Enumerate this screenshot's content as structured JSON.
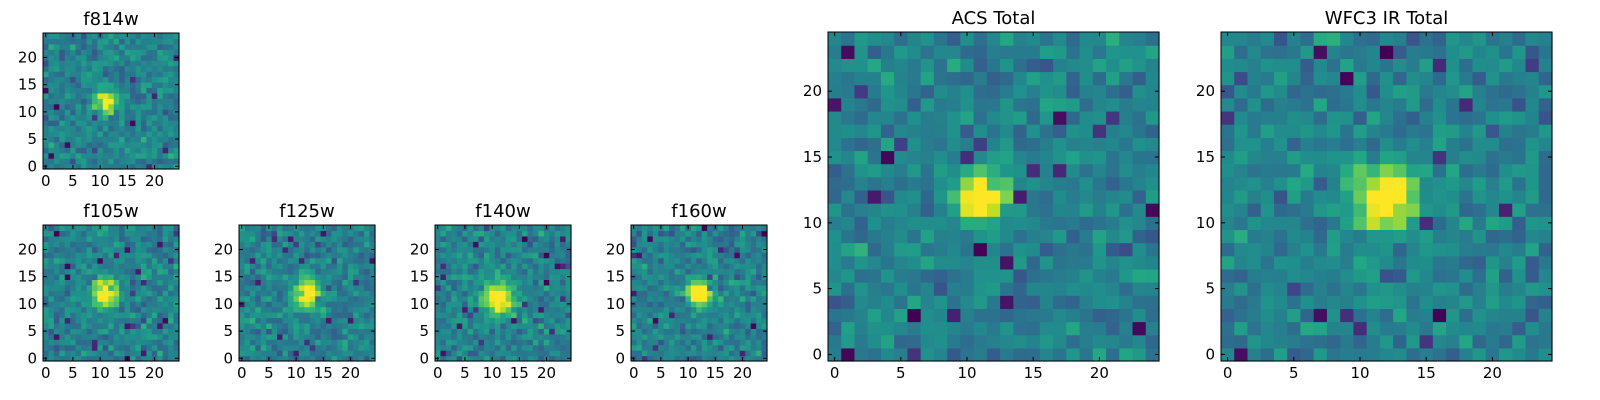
{
  "figure_description_colormap": "viridis",
  "colors": {
    "low": "#440154",
    "mid": "#21918c",
    "high": "#fde725",
    "frame": "#000000"
  },
  "chart_data": [
    {
      "type": "heatmap",
      "title": "f814w",
      "grid": 25,
      "xlim": [
        0,
        24
      ],
      "ylim": [
        0,
        24
      ],
      "xticks": [
        0,
        5,
        10,
        15,
        20
      ],
      "yticks": [
        0,
        5,
        10,
        15,
        20
      ],
      "source_peak": [
        11,
        12
      ],
      "source_width": 1.3,
      "noise_seed": 11
    },
    {
      "type": "heatmap",
      "title": "f105w",
      "grid": 25,
      "xlim": [
        0,
        24
      ],
      "ylim": [
        0,
        24
      ],
      "xticks": [
        0,
        5,
        10,
        15,
        20
      ],
      "yticks": [
        0,
        5,
        10,
        15,
        20
      ],
      "source_peak": [
        11,
        12
      ],
      "source_width": 1.7,
      "noise_seed": 23
    },
    {
      "type": "heatmap",
      "title": "f125w",
      "grid": 25,
      "xlim": [
        0,
        24
      ],
      "ylim": [
        0,
        24
      ],
      "xticks": [
        0,
        5,
        10,
        15,
        20
      ],
      "yticks": [
        0,
        5,
        10,
        15,
        20
      ],
      "source_peak": [
        12,
        12
      ],
      "source_width": 1.7,
      "noise_seed": 37
    },
    {
      "type": "heatmap",
      "title": "f140w",
      "grid": 25,
      "xlim": [
        0,
        24
      ],
      "ylim": [
        0,
        24
      ],
      "xticks": [
        0,
        5,
        10,
        15,
        20
      ],
      "yticks": [
        0,
        5,
        10,
        15,
        20
      ],
      "source_peak": [
        11,
        11
      ],
      "source_width": 2.0,
      "noise_seed": 41
    },
    {
      "type": "heatmap",
      "title": "f160w",
      "grid": 25,
      "xlim": [
        0,
        24
      ],
      "ylim": [
        0,
        24
      ],
      "xticks": [
        0,
        5,
        10,
        15,
        20
      ],
      "yticks": [
        0,
        5,
        10,
        15,
        20
      ],
      "source_peak": [
        12,
        12
      ],
      "source_width": 1.6,
      "noise_seed": 53
    },
    {
      "type": "heatmap",
      "title": "ACS Total",
      "grid": 25,
      "xlim": [
        0,
        24
      ],
      "ylim": [
        0,
        24
      ],
      "xticks": [
        0,
        5,
        10,
        15,
        20
      ],
      "yticks": [
        0,
        5,
        10,
        15,
        20
      ],
      "source_peak": [
        11,
        12
      ],
      "source_width": 1.4,
      "noise_seed": 67
    },
    {
      "type": "heatmap",
      "title": "WFC3 IR Total",
      "grid": 25,
      "xlim": [
        0,
        24
      ],
      "ylim": [
        0,
        24
      ],
      "xticks": [
        0,
        5,
        10,
        15,
        20
      ],
      "yticks": [
        0,
        5,
        10,
        15,
        20
      ],
      "source_peak": [
        12,
        12
      ],
      "source_width": 1.6,
      "noise_seed": 79
    }
  ]
}
